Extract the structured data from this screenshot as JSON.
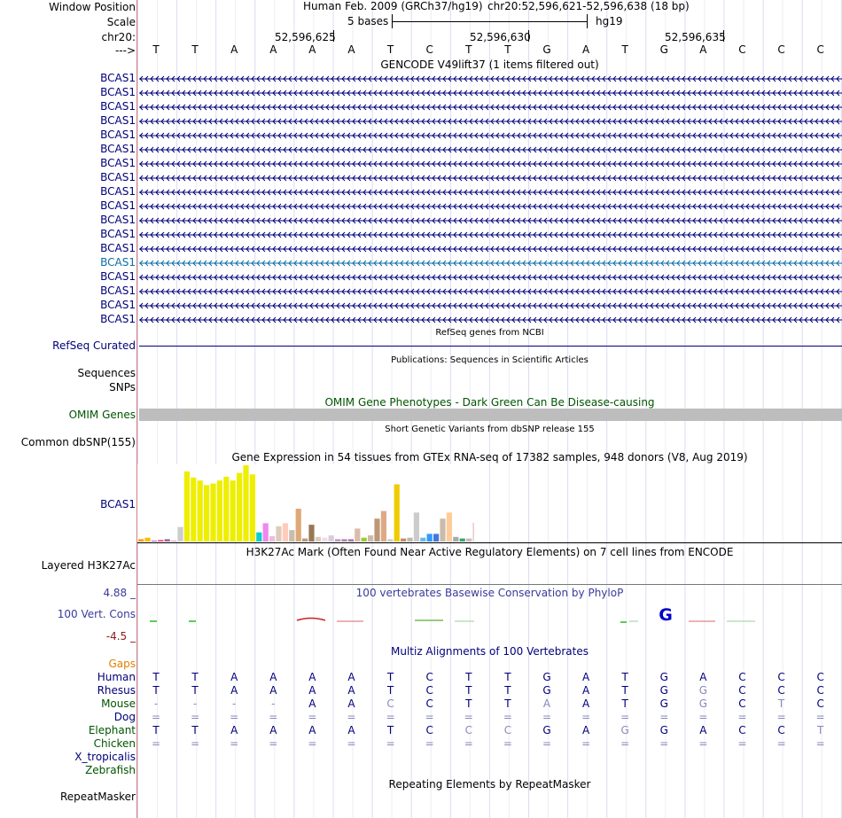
{
  "header": {
    "window_position_label": "Window Position",
    "scale_label": "Scale",
    "chrom_label": "chr20:",
    "strand_label": "--->",
    "assembly": "Human Feb. 2009 (GRCh37/hg19)",
    "position": "chr20:52,596,621-52,596,638 (18 bp)",
    "scale_text": "5 bases",
    "db": "hg19",
    "ticks": [
      "52,596,625",
      "52,596,630",
      "52,596,635"
    ]
  },
  "bases": [
    "T",
    "T",
    "A",
    "A",
    "A",
    "A",
    "T",
    "C",
    "T",
    "T",
    "G",
    "A",
    "T",
    "G",
    "A",
    "C",
    "C",
    "C"
  ],
  "gencode": {
    "title": "GENCODE V49lift37 (1 items filtered out)",
    "gene": "BCAS1",
    "rows": 18,
    "highlight_row": 13,
    "navy": "#00007a",
    "highlight_color": "#0a6ea5"
  },
  "tracks": {
    "refseq_label": "RefSeq Curated",
    "refseq_title": "RefSeq genes from NCBI",
    "pubs_title": "Publications: Sequences in Scientific Articles",
    "sequences_label": "Sequences",
    "snps_label": "SNPs",
    "omim_title": "OMIM Gene Phenotypes - Dark Green Can Be Disease-causing",
    "omim_label": "OMIM Genes",
    "dbsnp_title": "Short Genetic Variants from dbSNP release 155",
    "dbsnp_label": "Common dbSNP(155)",
    "gtex_title": "Gene Expression in 54 tissues from GTEx RNA-seq of 17382 samples, 948 donors (V8, Aug 2019)",
    "gtex_label": "BCAS1",
    "h3k27_title": "H3K27Ac Mark (Often Found Near Active Regulatory Elements) on 7 cell lines from ENCODE",
    "h3k27_label": "Layered H3K27Ac",
    "cons_title": "100 vertebrates Basewise Conservation by PhyloP",
    "cons_label": "100 Vert. Cons",
    "cons_max": "4.88 _",
    "cons_min": "-4.5 _",
    "multiz_title": "Multiz Alignments of 100 Vertebrates",
    "gaps_label": "Gaps",
    "repeat_title": "Repeating Elements by RepeatMasker",
    "repeat_label": "RepeatMasker"
  },
  "gtex_values": [
    3,
    5,
    1,
    2,
    3,
    1,
    19,
    92,
    84,
    80,
    74,
    76,
    80,
    85,
    80,
    90,
    100,
    88,
    12,
    24,
    7,
    20,
    24,
    15,
    43,
    4,
    22,
    6,
    5,
    8,
    3,
    3,
    3,
    17,
    5,
    8,
    30,
    40,
    3,
    75,
    4,
    5,
    38,
    5,
    10,
    10,
    30,
    38,
    6,
    4,
    4,
    25,
    2
  ],
  "gtex_colors": [
    "#ff9b00",
    "#ffbb00",
    "#9966cc",
    "#ff4466",
    "#996699",
    "#cc99bb",
    "#cccccc",
    "#eeee00",
    "#eeee00",
    "#eeee00",
    "#eeee00",
    "#eeee00",
    "#eeee00",
    "#eeee00",
    "#eeee00",
    "#eeee00",
    "#eeee00",
    "#eeee00",
    "#11cccc",
    "#ee88ee",
    "#eebbdd",
    "#ddccbb",
    "#ffccbb",
    "#ccbbaa",
    "#ddaa77",
    "#bb9988",
    "#997755",
    "#ddccbb",
    "#eeddee",
    "#ddccdd",
    "#bb99bb",
    "#aa88aa",
    "#aa77aa",
    "#ddbbaa",
    "#99cc33",
    "#ccbbaa",
    "#bb9977",
    "#ddaa88",
    "#cccccc",
    "#eecc00",
    "#cc8866",
    "#bbbbaa",
    "#cccccc",
    "#66bbee",
    "#3399ff",
    "#4477dd",
    "#ccbbaa",
    "#ffcc99",
    "#aaaaaa",
    "#33aa66",
    "#ccbbbb",
    "#eecccc",
    "#ee44ee"
  ],
  "species": [
    {
      "name": "Human",
      "color": "#00007a",
      "seq": [
        "T",
        "T",
        "A",
        "A",
        "A",
        "A",
        "T",
        "C",
        "T",
        "T",
        "G",
        "A",
        "T",
        "G",
        "A",
        "C",
        "C",
        "C"
      ]
    },
    {
      "name": "Rhesus",
      "color": "#00007a",
      "seq": [
        "T",
        "T",
        "A",
        "A",
        "A",
        "A",
        "T",
        "C",
        "T",
        "T",
        "G",
        "A",
        "T",
        "G",
        "G",
        "C",
        "C",
        "C"
      ]
    },
    {
      "name": "Mouse",
      "color": "#005500",
      "seq": [
        "-",
        "-",
        "-",
        "-",
        "A",
        "A",
        "C",
        "C",
        "T",
        "T",
        "A",
        "A",
        "T",
        "G",
        "G",
        "C",
        "T",
        "C"
      ]
    },
    {
      "name": "Dog",
      "color": "#00007a",
      "seq": [
        "=",
        "=",
        "=",
        "=",
        "=",
        "=",
        "=",
        "=",
        "=",
        "=",
        "=",
        "=",
        "=",
        "=",
        "=",
        "=",
        "=",
        "="
      ]
    },
    {
      "name": "Elephant",
      "color": "#005500",
      "seq": [
        "T",
        "T",
        "A",
        "A",
        "A",
        "A",
        "T",
        "C",
        "C",
        "C",
        "G",
        "A",
        "G",
        "G",
        "A",
        "C",
        "C",
        "T"
      ]
    },
    {
      "name": "Chicken",
      "color": "#005500",
      "seq": [
        "=",
        "=",
        "=",
        "=",
        "=",
        "=",
        "=",
        "=",
        "=",
        "=",
        "=",
        "=",
        "=",
        "=",
        "=",
        "=",
        "=",
        "="
      ]
    },
    {
      "name": "X_tropicalis",
      "color": "#00007a",
      "seq": []
    },
    {
      "name": "Zebrafish",
      "color": "#005500",
      "seq": []
    }
  ],
  "species_dim": {
    "Rhesus": [
      14
    ],
    "Mouse": [
      0,
      1,
      2,
      3,
      6,
      10,
      14,
      16
    ],
    "Dog": [
      0,
      1,
      2,
      3,
      4,
      5,
      6,
      7,
      8,
      9,
      10,
      11,
      12,
      13,
      14,
      15,
      16,
      17
    ],
    "Elephant": [
      8,
      9,
      12,
      17
    ],
    "Chicken": [
      0,
      1,
      2,
      3,
      4,
      5,
      6,
      7,
      8,
      9,
      10,
      11,
      12,
      13,
      14,
      15,
      16,
      17
    ]
  }
}
